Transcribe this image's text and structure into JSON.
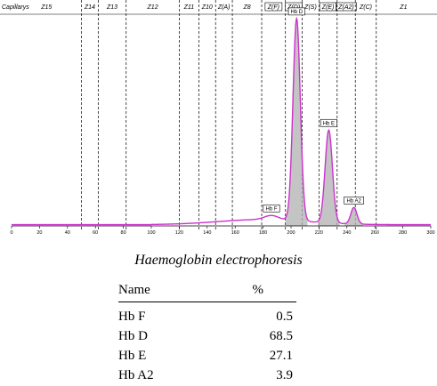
{
  "chart_data": {
    "type": "line",
    "corner_label": "Capillarys",
    "zones": [
      {
        "label": "Z15",
        "from": 0,
        "to": 50
      },
      {
        "label": "Z14",
        "from": 50,
        "to": 62
      },
      {
        "label": "Z13",
        "from": 62,
        "to": 82
      },
      {
        "label": "Z12",
        "from": 82,
        "to": 120
      },
      {
        "label": "Z11",
        "from": 120,
        "to": 134
      },
      {
        "label": "Z10",
        "from": 134,
        "to": 146
      },
      {
        "label": "Z(A)",
        "from": 146,
        "to": 158
      },
      {
        "label": "Z8",
        "from": 158,
        "to": 179
      },
      {
        "label": "Z(F)",
        "from": 179,
        "to": 196
      },
      {
        "label": "Z(D)",
        "from": 196,
        "to": 208
      },
      {
        "label": "Z(S)",
        "from": 208,
        "to": 220
      },
      {
        "label": "Z(E)",
        "from": 220,
        "to": 233
      },
      {
        "label": "Z(A2)",
        "from": 233,
        "to": 246
      },
      {
        "label": "Z(C)",
        "from": 246,
        "to": 261
      },
      {
        "label": "Z1",
        "from": 261,
        "to": 300
      }
    ],
    "boxed_zones": [
      "Z(F)",
      "Z(D)",
      "Z(E)",
      "Z(A2)"
    ],
    "xlim": [
      0,
      300
    ],
    "ylim": [
      0,
      100
    ],
    "xticks": [
      0,
      20,
      40,
      60,
      80,
      100,
      120,
      140,
      160,
      180,
      200,
      220,
      240,
      260,
      280,
      300
    ],
    "peaks": [
      {
        "name": "Hb F",
        "x": 186,
        "height": 2,
        "width": 5
      },
      {
        "name": "Hb D",
        "x": 204,
        "height": 98,
        "width": 2.6
      },
      {
        "name": "Hb E",
        "x": 227,
        "height": 45,
        "width": 2.6
      },
      {
        "name": "Hb A2",
        "x": 245,
        "height": 8,
        "width": 2.2
      }
    ],
    "line_color": "#cc33cc",
    "fill_color": "#b0b0b0",
    "grid": false
  },
  "title": "Haemoglobin electrophoresis",
  "table": {
    "headers": [
      "Name",
      "%"
    ],
    "rows": [
      {
        "name": "Hb F",
        "value": "0.5"
      },
      {
        "name": "Hb D",
        "value": "68.5"
      },
      {
        "name": "Hb E",
        "value": "27.1"
      },
      {
        "name": "Hb A2",
        "value": "3.9"
      }
    ]
  }
}
